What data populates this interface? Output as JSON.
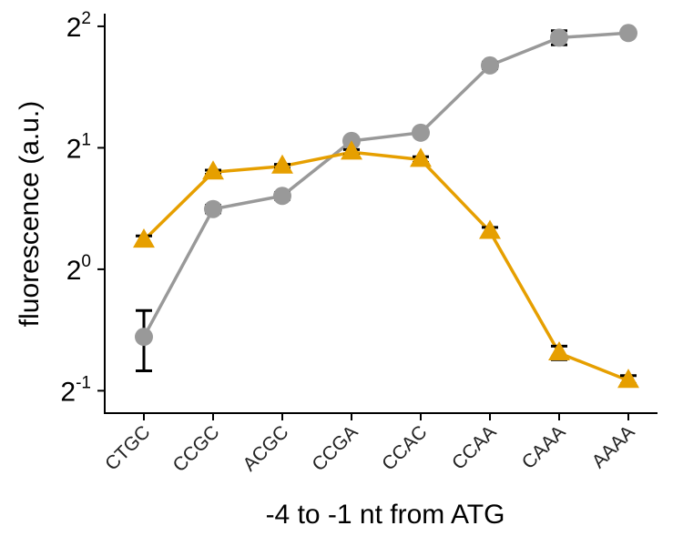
{
  "chart_data": {
    "type": "line",
    "xlabel": "-4 to -1 nt from ATG",
    "ylabel": "fluorescence (a.u.)",
    "y_scale": "log2",
    "ylim": [
      0.44,
      4.3
    ],
    "yticks": [
      {
        "value": 0.5,
        "base": "2",
        "exp": "-1"
      },
      {
        "value": 1,
        "base": "2",
        "exp": "0"
      },
      {
        "value": 2,
        "base": "2",
        "exp": "1"
      },
      {
        "value": 4,
        "base": "2",
        "exp": "2"
      }
    ],
    "categories": [
      "CTGC",
      "CCGC",
      "ACGC",
      "CCGA",
      "CCAC",
      "CCAA",
      "CAAA",
      "AAAA"
    ],
    "series": [
      {
        "marker": "circle",
        "color": "#999999",
        "values": [
          0.68,
          1.41,
          1.52,
          2.08,
          2.18,
          3.2,
          3.75,
          3.85
        ],
        "err_low": [
          0.56,
          1.38,
          1.49,
          2.05,
          2.15,
          3.14,
          3.6,
          3.8
        ],
        "err_high": [
          0.79,
          1.44,
          1.55,
          2.11,
          2.21,
          3.26,
          3.9,
          3.9
        ]
      },
      {
        "marker": "triangle",
        "color": "#E69F00",
        "values": [
          1.18,
          1.74,
          1.8,
          1.95,
          1.87,
          1.24,
          0.62,
          0.53
        ],
        "err_low": [
          1.15,
          1.72,
          1.78,
          1.92,
          1.84,
          1.21,
          0.597,
          0.52
        ],
        "err_high": [
          1.21,
          1.76,
          1.82,
          1.98,
          1.9,
          1.27,
          0.645,
          0.545
        ]
      }
    ]
  }
}
